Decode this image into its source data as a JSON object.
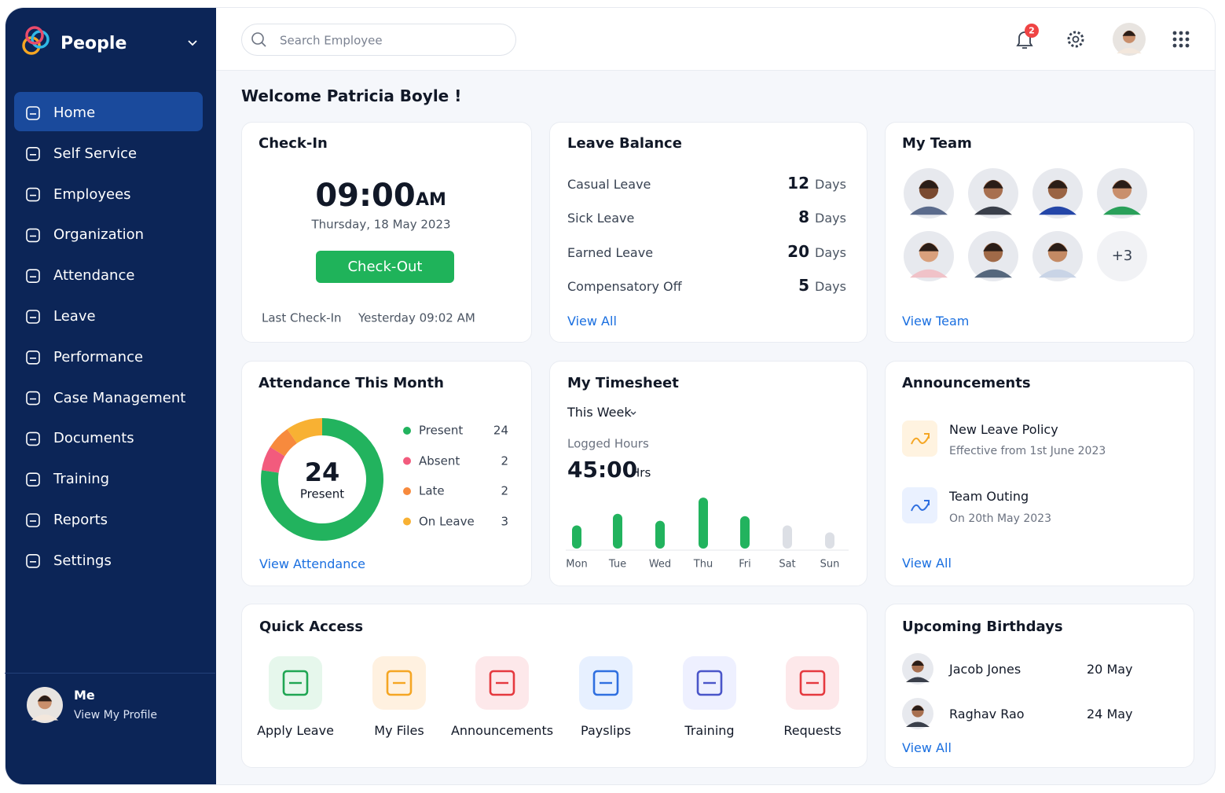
{
  "app": {
    "name": "People"
  },
  "search_placeholder": "Search Employee",
  "notification_count": 2,
  "nav": [
    "Home",
    "Self Service",
    "Employees",
    "Organization",
    "Attendance",
    "Leave",
    "Performance",
    "Case Management",
    "Documents",
    "Training",
    "Reports",
    "Settings"
  ],
  "profile": {
    "name": "Me",
    "link": "View My Profile"
  },
  "welcome": "Welcome Patricia Boyle !",
  "check_in": {
    "title": "Check-In",
    "time": "09:00",
    "meridiem": "AM",
    "date": "Thursday, 18 May 2023",
    "button": "Check-Out",
    "last_label": "Last Check-In",
    "last_value": "Yesterday 09:02 AM"
  },
  "leave_balance": {
    "title": "Leave Balance",
    "unit": "Days",
    "link": "View All",
    "items": [
      {
        "name": "Casual Leave",
        "days": 12
      },
      {
        "name": "Sick Leave",
        "days": 8
      },
      {
        "name": "Earned Leave",
        "days": 20
      },
      {
        "name": "Compensatory Off",
        "days": 5
      }
    ]
  },
  "my_team": {
    "title": "My Team",
    "more": "+3",
    "link": "View Team"
  },
  "attendance": {
    "title": "Attendance This Month",
    "center_label": "Present",
    "link": "View Attendance",
    "items": [
      {
        "name": "Present",
        "value": 24,
        "color": "#22b35e"
      },
      {
        "name": "Absent",
        "value": 2,
        "color": "#f25b7d"
      },
      {
        "name": "Late",
        "value": 2,
        "color": "#f78a3d"
      },
      {
        "name": "On Leave",
        "value": 3,
        "color": "#f8b133"
      }
    ]
  },
  "timesheet": {
    "title": "My Timesheet",
    "period": "This Week",
    "logged_label": "Logged Hours",
    "logged_value": "45:00",
    "logged_unit": "Hrs",
    "days": [
      "Mon",
      "Tue",
      "Wed",
      "Thu",
      "Fri",
      "Sat",
      "Sun"
    ],
    "hours": [
      5,
      7.5,
      6,
      11,
      7,
      5,
      3.5
    ],
    "colors": [
      "#22b35e",
      "#22b35e",
      "#22b35e",
      "#22b35e",
      "#22b35e",
      "#dcdfe5",
      "#dcdfe5"
    ]
  },
  "announcements": {
    "title": "Announcements",
    "link": "View All",
    "items": [
      {
        "title": "New Leave Policy",
        "subtitle": "Effective from 1st June 2023"
      },
      {
        "title": "Team Outing",
        "subtitle": "On 20th May 2023"
      }
    ]
  },
  "quick_access": {
    "title": "Quick Access",
    "items": [
      "Apply Leave",
      "My Files",
      "Announcements",
      "Payslips",
      "Training",
      "Requests"
    ]
  },
  "birthdays": {
    "title": "Upcoming Birthdays",
    "link": "View All",
    "items": [
      {
        "name": "Jacob Jones",
        "date": "20 May"
      },
      {
        "name": "Raghav Rao",
        "date": "24 May"
      }
    ]
  }
}
